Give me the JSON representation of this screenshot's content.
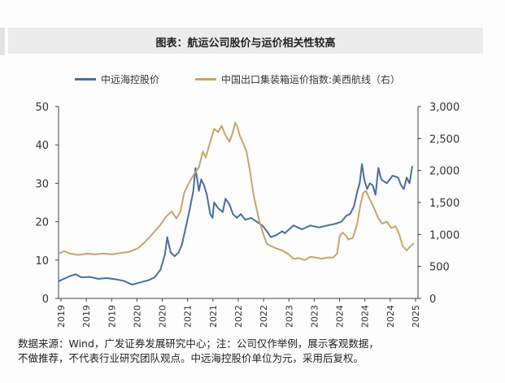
{
  "title": "图表：航运公司股价与运价相关性较高",
  "legend": {
    "stock": "中远海控股价",
    "freight": "中国出口集装箱运价指数:美西航线（右）"
  },
  "source": {
    "line1": "数据来源：Wind，广发证券发展研究中心；注：公司仅作举例，展示客观数据，",
    "line2": "不做推荐，不代表行业研究团队观点。中远海控股价单位为元，采用后复权。"
  },
  "chart_data": {
    "type": "line",
    "title": "图表：航运公司股价与运价相关性较高",
    "x_ticks": [
      "2019",
      "2019",
      "2019",
      "2020",
      "2020",
      "2021",
      "2021",
      "2022",
      "2022",
      "2023",
      "2023",
      "2024",
      "2024",
      "2024",
      "2025"
    ],
    "x_range": [
      2019.0,
      2025.35
    ],
    "y_left": {
      "ylim": [
        0,
        50
      ],
      "ticks": [
        "0",
        "10",
        "20",
        "30",
        "40",
        "50"
      ]
    },
    "y_right": {
      "ylim": [
        0,
        3000
      ],
      "ticks": [
        "0",
        "500",
        "1,000",
        "1,500",
        "2,000",
        "2,500",
        "3,000"
      ]
    },
    "colors": {
      "stock": "#4a6f9e",
      "freight": "#c9a46b"
    },
    "series": [
      {
        "name": "中远海控股价",
        "axis": "left",
        "points": [
          [
            2019.0,
            4.5
          ],
          [
            2019.08,
            5.0
          ],
          [
            2019.2,
            5.8
          ],
          [
            2019.3,
            6.3
          ],
          [
            2019.4,
            5.5
          ],
          [
            2019.55,
            5.6
          ],
          [
            2019.7,
            5.1
          ],
          [
            2019.85,
            5.3
          ],
          [
            2020.0,
            5.0
          ],
          [
            2020.15,
            4.6
          ],
          [
            2020.3,
            3.6
          ],
          [
            2020.45,
            4.2
          ],
          [
            2020.6,
            4.8
          ],
          [
            2020.7,
            5.5
          ],
          [
            2020.8,
            7.5
          ],
          [
            2020.88,
            11.5
          ],
          [
            2020.92,
            16.0
          ],
          [
            2020.98,
            12.0
          ],
          [
            2021.05,
            11.0
          ],
          [
            2021.12,
            12.0
          ],
          [
            2021.18,
            14.0
          ],
          [
            2021.3,
            22.0
          ],
          [
            2021.38,
            28.0
          ],
          [
            2021.42,
            34.0
          ],
          [
            2021.48,
            28.0
          ],
          [
            2021.52,
            31.0
          ],
          [
            2021.57,
            29.5
          ],
          [
            2021.62,
            27.0
          ],
          [
            2021.68,
            22.0
          ],
          [
            2021.72,
            21.0
          ],
          [
            2021.75,
            25.0
          ],
          [
            2021.82,
            23.5
          ],
          [
            2021.9,
            22.5
          ],
          [
            2021.95,
            26.0
          ],
          [
            2022.02,
            24.5
          ],
          [
            2022.08,
            22.0
          ],
          [
            2022.15,
            21.0
          ],
          [
            2022.22,
            22.0
          ],
          [
            2022.3,
            20.5
          ],
          [
            2022.4,
            21.0
          ],
          [
            2022.5,
            20.0
          ],
          [
            2022.6,
            19.0
          ],
          [
            2022.68,
            17.5
          ],
          [
            2022.75,
            16.0
          ],
          [
            2022.85,
            16.5
          ],
          [
            2022.95,
            17.5
          ],
          [
            2023.0,
            17.0
          ],
          [
            2023.15,
            19.0
          ],
          [
            2023.3,
            18.0
          ],
          [
            2023.45,
            19.0
          ],
          [
            2023.6,
            18.5
          ],
          [
            2023.75,
            19.0
          ],
          [
            2023.9,
            19.5
          ],
          [
            2024.0,
            20.0
          ],
          [
            2024.08,
            21.5
          ],
          [
            2024.15,
            22.0
          ],
          [
            2024.22,
            24.0
          ],
          [
            2024.28,
            28.0
          ],
          [
            2024.32,
            30.0
          ],
          [
            2024.36,
            35.0
          ],
          [
            2024.4,
            31.0
          ],
          [
            2024.45,
            28.5
          ],
          [
            2024.5,
            30.0
          ],
          [
            2024.55,
            29.5
          ],
          [
            2024.6,
            27.0
          ],
          [
            2024.65,
            34.0
          ],
          [
            2024.7,
            31.0
          ],
          [
            2024.8,
            30.0
          ],
          [
            2024.9,
            32.0
          ],
          [
            2025.0,
            31.5
          ],
          [
            2025.05,
            29.5
          ],
          [
            2025.1,
            28.5
          ],
          [
            2025.15,
            31.5
          ],
          [
            2025.2,
            30.0
          ],
          [
            2025.25,
            34.5
          ]
        ]
      },
      {
        "name": "中国出口集装箱运价指数:美西航线（右）",
        "axis": "right",
        "points": [
          [
            2019.0,
            700
          ],
          [
            2019.1,
            740
          ],
          [
            2019.2,
            700
          ],
          [
            2019.35,
            680
          ],
          [
            2019.5,
            700
          ],
          [
            2019.65,
            690
          ],
          [
            2019.8,
            700
          ],
          [
            2019.95,
            690
          ],
          [
            2020.1,
            710
          ],
          [
            2020.25,
            730
          ],
          [
            2020.4,
            780
          ],
          [
            2020.5,
            860
          ],
          [
            2020.6,
            950
          ],
          [
            2020.7,
            1050
          ],
          [
            2020.8,
            1150
          ],
          [
            2020.9,
            1280
          ],
          [
            2021.0,
            1360
          ],
          [
            2021.08,
            1250
          ],
          [
            2021.15,
            1350
          ],
          [
            2021.22,
            1650
          ],
          [
            2021.3,
            1800
          ],
          [
            2021.4,
            1950
          ],
          [
            2021.48,
            2050
          ],
          [
            2021.55,
            2300
          ],
          [
            2021.6,
            2200
          ],
          [
            2021.68,
            2450
          ],
          [
            2021.75,
            2650
          ],
          [
            2021.82,
            2600
          ],
          [
            2021.88,
            2700
          ],
          [
            2021.95,
            2550
          ],
          [
            2022.02,
            2450
          ],
          [
            2022.08,
            2600
          ],
          [
            2022.12,
            2750
          ],
          [
            2022.16,
            2680
          ],
          [
            2022.2,
            2550
          ],
          [
            2022.25,
            2450
          ],
          [
            2022.32,
            2300
          ],
          [
            2022.38,
            2000
          ],
          [
            2022.45,
            1600
          ],
          [
            2022.55,
            1200
          ],
          [
            2022.62,
            1000
          ],
          [
            2022.68,
            850
          ],
          [
            2022.75,
            820
          ],
          [
            2022.85,
            780
          ],
          [
            2022.95,
            750
          ],
          [
            2023.05,
            700
          ],
          [
            2023.15,
            620
          ],
          [
            2023.25,
            630
          ],
          [
            2023.35,
            600
          ],
          [
            2023.45,
            650
          ],
          [
            2023.55,
            640
          ],
          [
            2023.65,
            620
          ],
          [
            2023.75,
            640
          ],
          [
            2023.85,
            640
          ],
          [
            2023.92,
            700
          ],
          [
            2023.97,
            980
          ],
          [
            2024.02,
            1030
          ],
          [
            2024.08,
            980
          ],
          [
            2024.12,
            920
          ],
          [
            2024.2,
            950
          ],
          [
            2024.28,
            1180
          ],
          [
            2024.33,
            1450
          ],
          [
            2024.38,
            1650
          ],
          [
            2024.43,
            1680
          ],
          [
            2024.5,
            1550
          ],
          [
            2024.58,
            1400
          ],
          [
            2024.65,
            1250
          ],
          [
            2024.72,
            1170
          ],
          [
            2024.8,
            1200
          ],
          [
            2024.88,
            1100
          ],
          [
            2024.95,
            1130
          ],
          [
            2025.02,
            1000
          ],
          [
            2025.08,
            820
          ],
          [
            2025.15,
            750
          ],
          [
            2025.22,
            820
          ],
          [
            2025.28,
            860
          ]
        ]
      }
    ]
  }
}
